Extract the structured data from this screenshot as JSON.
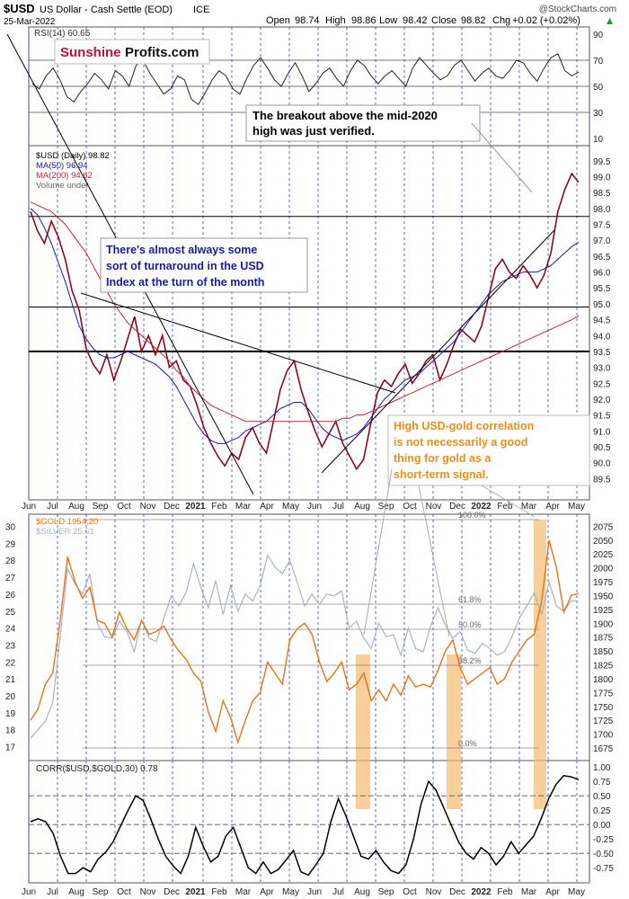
{
  "header": {
    "symbol": "$USD",
    "name": "US Dollar - Cash Settle (EOD)",
    "exchange": "ICE",
    "date": "25-Mar-2022",
    "open_label": "Open",
    "open": "98.74",
    "high_label": "High",
    "high": "98.86",
    "low_label": "Low",
    "low": "98.42",
    "close_label": "Close",
    "close": "98.82",
    "chg_label": "Chg",
    "chg": "+0.02 (+0.02%)",
    "watermark": "@StockCharts.com"
  },
  "logo": {
    "part1": "Sunshine",
    "part2": "Profits.com"
  },
  "annotations": {
    "breakout": [
      "The breakout above the mid-2020",
      "high was just verified."
    ],
    "turnaround": [
      "There's almost always some",
      "sort of turnaround in the USD",
      "Index at the turn of the month"
    ],
    "correlation": [
      "High USD-gold correlation",
      "is not necessarily a good",
      "thing for gold as a",
      "short-term signal."
    ]
  },
  "colors": {
    "price": "#8a0a1f",
    "ma50": "#1a1aa0",
    "ma200": "#cc2233",
    "gold": "#e8721a",
    "silver": "#a9b4bc",
    "corr": "#000000",
    "highlight": "#f5b970",
    "annotation_blue": "#1a1aa0",
    "annotation_orange": "#e8901a",
    "month_line": "#3344cc"
  },
  "chart_data": [
    {
      "type": "line",
      "name": "rsi_panel",
      "legend": "RSI(14) 60.65",
      "y_ticks": [
        "90",
        "70",
        "50",
        "30",
        "10"
      ],
      "ylim": [
        10,
        90
      ],
      "levels": [
        70,
        50,
        30
      ],
      "series": [
        {
          "values": [
            52,
            48,
            58,
            64,
            55,
            42,
            38,
            46,
            52,
            60,
            55,
            48,
            62,
            58,
            50,
            66,
            70,
            60,
            52,
            44,
            48,
            58,
            55,
            40,
            36,
            45,
            55,
            62,
            58,
            48,
            44,
            56,
            66,
            72,
            64,
            55,
            50,
            60,
            68,
            58,
            46,
            52,
            60,
            64,
            56,
            50,
            62,
            70,
            66,
            58,
            52,
            58,
            62,
            56,
            50,
            64,
            72,
            66,
            60,
            55,
            58,
            66,
            70,
            62,
            54,
            60,
            64,
            58,
            56,
            62,
            70,
            68,
            60,
            54,
            64,
            72,
            75,
            62,
            58,
            61
          ]
        }
      ]
    },
    {
      "type": "line",
      "name": "usd_panel",
      "legend": [
        {
          "label": "$USD (Daily) 98.82",
          "color": "#000000"
        },
        {
          "label": "MA(50) 96.94",
          "color": "#1a1aa0"
        },
        {
          "label": "MA(200) 94.62",
          "color": "#cc2233"
        },
        {
          "label": "Volume undef",
          "color": "#666666"
        }
      ],
      "y_ticks": [
        "99.5",
        "99.0",
        "98.5",
        "98.0",
        "97.5",
        "97.0",
        "96.5",
        "96.0",
        "95.5",
        "95.0",
        "94.5",
        "94.0",
        "93.5",
        "93.0",
        "92.5",
        "92.0",
        "91.5",
        "91.0",
        "90.5",
        "90.0",
        "89.5"
      ],
      "ylim": [
        89.0,
        99.75
      ],
      "x_ticks": [
        "Jun",
        "Jul",
        "Aug",
        "Sep",
        "Oct",
        "Nov",
        "Dec",
        "2021",
        "Feb",
        "Mar",
        "Apr",
        "May",
        "Jun",
        "Jul",
        "Aug",
        "Sep",
        "Oct",
        "Nov",
        "Dec",
        "2022",
        "Feb",
        "Mar",
        "Apr",
        "May"
      ],
      "horizontal_levels": [
        97.75,
        94.9,
        93.5
      ],
      "series": [
        {
          "name": "$USD (Daily)",
          "values": [
            97.9,
            97.3,
            96.9,
            97.6,
            97.1,
            96.4,
            95.4,
            94.8,
            93.6,
            93.1,
            92.8,
            93.4,
            92.6,
            93.2,
            93.9,
            94.6,
            93.5,
            94.0,
            93.4,
            94.0,
            93.0,
            93.2,
            92.6,
            92.4,
            91.8,
            91.1,
            90.6,
            90.2,
            89.9,
            90.3,
            90.1,
            90.8,
            91.1,
            90.6,
            90.3,
            91.3,
            92.3,
            92.9,
            93.2,
            92.3,
            91.6,
            91.0,
            90.5,
            90.9,
            91.3,
            90.6,
            90.2,
            89.8,
            90.1,
            91.2,
            92.2,
            92.6,
            92.4,
            92.8,
            93.1,
            92.5,
            92.8,
            93.2,
            93.4,
            92.6,
            93.1,
            93.7,
            94.2,
            94.0,
            93.8,
            94.3,
            95.2,
            96.1,
            96.4,
            96.0,
            95.8,
            96.2,
            95.9,
            95.5,
            95.9,
            96.6,
            97.9,
            98.6,
            99.1,
            98.82
          ]
        },
        {
          "name": "MA(50)",
          "values": [
            98.0,
            97.8,
            97.4,
            96.9,
            96.3,
            95.7,
            95.0,
            94.3,
            93.9,
            93.6,
            93.4,
            93.3,
            93.3,
            93.4,
            93.5,
            93.4,
            93.3,
            93.2,
            93.1,
            92.9,
            92.7,
            92.4,
            92.0,
            91.6,
            91.2,
            90.9,
            90.7,
            90.6,
            90.6,
            90.7,
            90.8,
            91.0,
            91.1,
            91.2,
            91.3,
            91.5,
            91.7,
            91.8,
            91.9,
            91.9,
            91.7,
            91.4,
            91.1,
            90.9,
            90.8,
            90.7,
            90.8,
            90.9,
            91.1,
            91.4,
            91.7,
            92.0,
            92.2,
            92.4,
            92.6,
            92.7,
            92.8,
            93.0,
            93.2,
            93.4,
            93.6,
            93.8,
            94.1,
            94.4,
            94.7,
            95.0,
            95.3,
            95.5,
            95.7,
            95.8,
            95.9,
            96.0,
            96.0,
            96.0,
            96.1,
            96.2,
            96.4,
            96.6,
            96.8,
            96.94
          ]
        },
        {
          "name": "MA(200)",
          "values": [
            98.2,
            98.1,
            98.0,
            97.9,
            97.7,
            97.5,
            97.2,
            96.9,
            96.6,
            96.2,
            95.8,
            95.4,
            95.0,
            94.7,
            94.4,
            94.2,
            94.0,
            93.8,
            93.6,
            93.4,
            93.2,
            92.9,
            92.7,
            92.4,
            92.2,
            92.0,
            91.8,
            91.7,
            91.6,
            91.5,
            91.4,
            91.3,
            91.3,
            91.3,
            91.3,
            91.3,
            91.3,
            91.3,
            91.3,
            91.3,
            91.3,
            91.3,
            91.3,
            91.3,
            91.3,
            91.4,
            91.4,
            91.5,
            91.5,
            91.6,
            91.7,
            91.8,
            91.9,
            92.0,
            92.1,
            92.2,
            92.3,
            92.4,
            92.5,
            92.6,
            92.7,
            92.8,
            92.9,
            93.0,
            93.1,
            93.2,
            93.3,
            93.4,
            93.5,
            93.6,
            93.7,
            93.8,
            93.9,
            94.0,
            94.1,
            94.2,
            94.3,
            94.4,
            94.5,
            94.62
          ]
        }
      ]
    },
    {
      "type": "line",
      "name": "gold_silver_panel",
      "legend": [
        {
          "label": "$GOLD 1954.20",
          "color": "#e8721a"
        },
        {
          "label": "$SILVER 25.61",
          "color": "#a9b4bc"
        }
      ],
      "y_ticks_left": [
        "30",
        "29",
        "28",
        "27",
        "26",
        "25",
        "24",
        "23",
        "22",
        "21",
        "20",
        "19",
        "18",
        "17"
      ],
      "y_ticks_right": [
        "2075",
        "2050",
        "2025",
        "2000",
        "1975",
        "1950",
        "1925",
        "1900",
        "1875",
        "1850",
        "1825",
        "1800",
        "1775",
        "1750",
        "1725",
        "1700",
        "1675"
      ],
      "left_range": [
        16.5,
        30.4
      ],
      "right_range": [
        1662,
        2087
      ],
      "fib_labels": [
        "100.0%",
        "61.8%",
        "50.0%",
        "38.2%",
        "0.0%"
      ],
      "series": [
        {
          "name": "$GOLD",
          "values": [
            1725,
            1745,
            1790,
            1810,
            1905,
            2020,
            1975,
            1945,
            1965,
            1905,
            1900,
            1875,
            1920,
            1890,
            1870,
            1905,
            1880,
            1885,
            1895,
            1870,
            1850,
            1835,
            1810,
            1795,
            1740,
            1705,
            1760,
            1730,
            1685,
            1725,
            1760,
            1775,
            1830,
            1810,
            1790,
            1870,
            1890,
            1900,
            1880,
            1830,
            1795,
            1810,
            1830,
            1780,
            1790,
            1810,
            1760,
            1780,
            1760,
            1790,
            1770,
            1805,
            1785,
            1790,
            1785,
            1815,
            1850,
            1870,
            1820,
            1790,
            1800,
            1810,
            1820,
            1790,
            1800,
            1830,
            1850,
            1870,
            1880,
            1940,
            2050,
            2000,
            1920,
            1950,
            1954
          ]
        },
        {
          "name": "$SILVER",
          "values": [
            17.5,
            18.0,
            18.5,
            19.6,
            23.5,
            27.5,
            26.6,
            26.0,
            27.2,
            24.3,
            23.5,
            23.4,
            24.4,
            23.8,
            22.6,
            24.5,
            23.4,
            23.2,
            24.6,
            25.9,
            25.3,
            26.1,
            27.8,
            26.4,
            25.2,
            26.8,
            24.8,
            26.5,
            25.0,
            26.0,
            25.6,
            26.5,
            28.3,
            27.6,
            27.2,
            28.0,
            26.7,
            25.3,
            26.0,
            25.4,
            26.0,
            25.9,
            26.2,
            24.0,
            24.4,
            23.4,
            22.8,
            24.3,
            23.5,
            23.6,
            22.4,
            24.0,
            22.8,
            22.6,
            24.1,
            25.2,
            24.2,
            23.4,
            23.8,
            22.7,
            22.5,
            23.1,
            22.8,
            22.4,
            22.6,
            23.5,
            24.6,
            25.3,
            26.1,
            24.8,
            26.7,
            25.3,
            25.0,
            25.6,
            25.61
          ]
        }
      ]
    },
    {
      "type": "line",
      "name": "correlation_panel",
      "legend": "CORR($USD,$GOLD,30) 0.78",
      "y_ticks": [
        "1.00",
        "0.75",
        "0.50",
        "0.25",
        "0.00",
        "-0.25",
        "-0.50",
        "-0.75"
      ],
      "ylim": [
        -0.95,
        1.05
      ],
      "levels": [
        0.5,
        0.0,
        -0.5
      ],
      "x_ticks": [
        "Jun",
        "Jul",
        "Aug",
        "Sep",
        "Oct",
        "Nov",
        "Dec",
        "2021",
        "Feb",
        "Mar",
        "Apr",
        "May",
        "Jun",
        "Jul",
        "Aug",
        "Sep",
        "Oct",
        "Nov",
        "Dec",
        "2022",
        "Feb",
        "Mar",
        "Apr",
        "May"
      ],
      "series": [
        {
          "values": [
            0.05,
            0.1,
            0.05,
            -0.15,
            -0.55,
            -0.85,
            -0.85,
            -0.75,
            -0.82,
            -0.6,
            -0.48,
            -0.3,
            -0.02,
            0.25,
            0.5,
            0.42,
            0.1,
            -0.25,
            -0.55,
            -0.72,
            -0.85,
            -0.55,
            -0.05,
            -0.38,
            -0.65,
            -0.55,
            -0.2,
            -0.05,
            -0.4,
            -0.75,
            -0.85,
            -0.65,
            -0.85,
            -0.78,
            -0.62,
            -0.45,
            -0.82,
            -0.88,
            -0.7,
            -0.5,
            0.05,
            0.45,
            0.15,
            -0.2,
            -0.55,
            -0.6,
            -0.45,
            -0.65,
            -0.8,
            -0.85,
            -0.7,
            -0.25,
            0.35,
            0.75,
            0.6,
            0.3,
            0.0,
            -0.3,
            -0.5,
            -0.6,
            -0.4,
            -0.5,
            -0.7,
            -0.55,
            -0.3,
            -0.5,
            -0.35,
            -0.2,
            0.1,
            0.45,
            0.7,
            0.85,
            0.83,
            0.78
          ]
        }
      ]
    }
  ]
}
